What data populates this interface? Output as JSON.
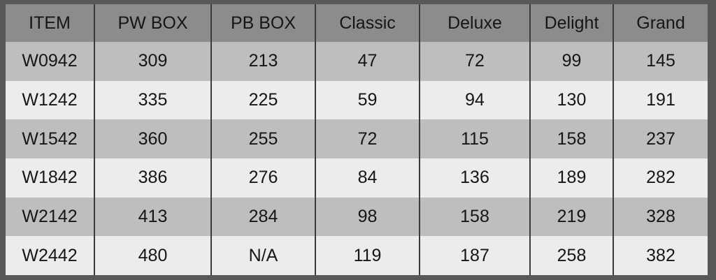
{
  "table": {
    "headers": [
      "ITEM",
      "PW BOX",
      "PB BOX",
      "Classic",
      "Deluxe",
      "Delight",
      "Grand"
    ],
    "rows": [
      [
        "W0942",
        "309",
        "213",
        "47",
        "72",
        "99",
        "145"
      ],
      [
        "W1242",
        "335",
        "225",
        "59",
        "94",
        "130",
        "191"
      ],
      [
        "W1542",
        "360",
        "255",
        "72",
        "115",
        "158",
        "237"
      ],
      [
        "W1842",
        "386",
        "276",
        "84",
        "136",
        "189",
        "282"
      ],
      [
        "W2142",
        "413",
        "284",
        "98",
        "158",
        "219",
        "328"
      ],
      [
        "W2442",
        "480",
        "N/A",
        "119",
        "187",
        "258",
        "382"
      ]
    ]
  },
  "colors": {
    "frame": "#58585a",
    "header": "#8c8c8e",
    "row_dark": "#bebebe",
    "row_light": "#ececec"
  }
}
